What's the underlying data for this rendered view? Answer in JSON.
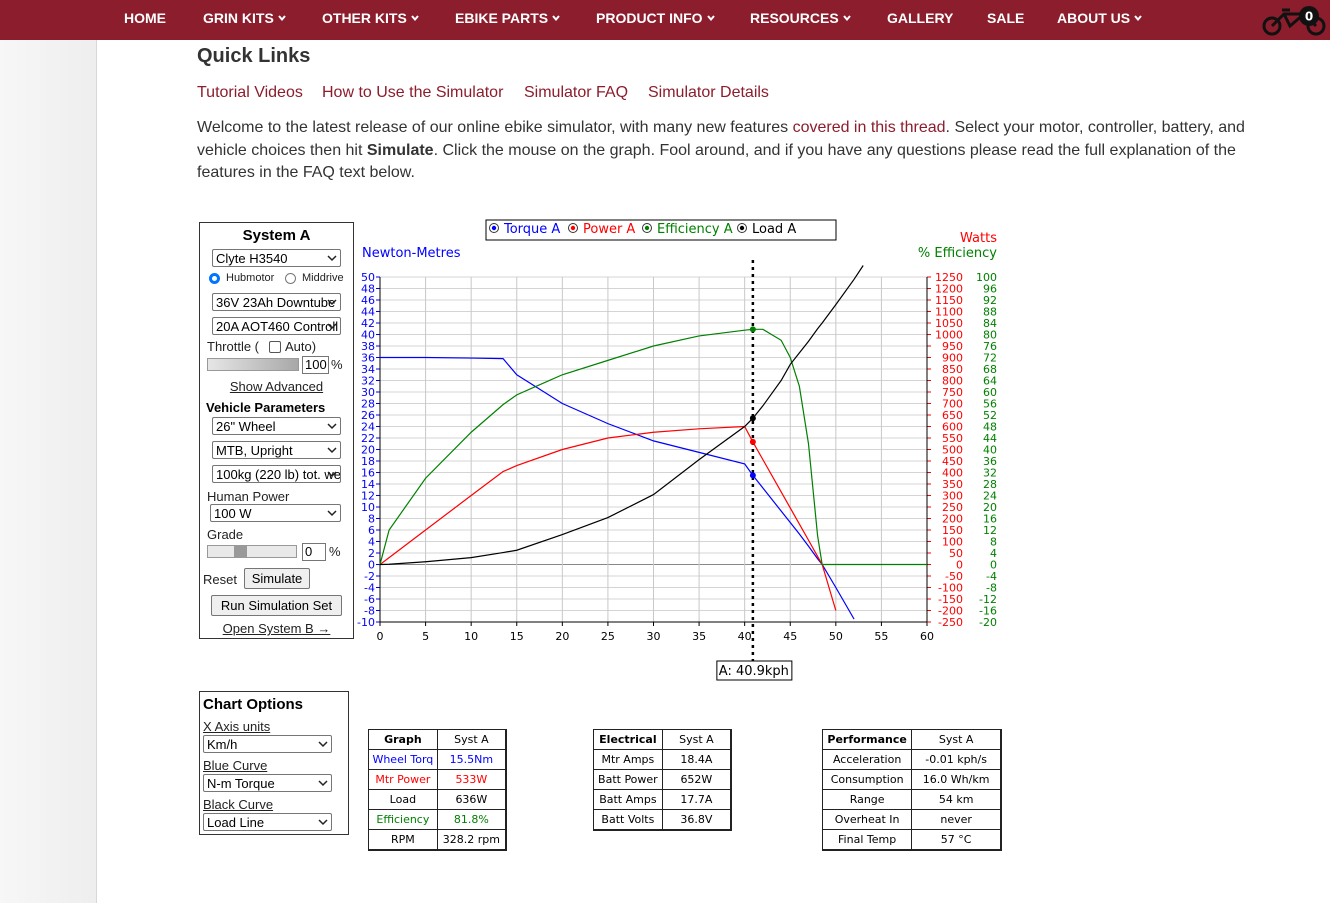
{
  "nav": {
    "items": [
      "HOME",
      "GRIN KITS",
      "OTHER KITS",
      "EBIKE PARTS",
      "PRODUCT INFO",
      "RESOURCES",
      "GALLERY",
      "SALE",
      "ABOUT US"
    ],
    "cart_count": 0
  },
  "header": {
    "title": "Quick Links"
  },
  "quick_links": [
    "Tutorial Videos",
    "How to Use the Simulator",
    "Simulator FAQ",
    "Simulator Details"
  ],
  "intro": {
    "text_1": "Welcome to the latest release of our online ebike simulator, with many new features ",
    "link": "covered in this thread",
    "text_2": ".  Select your motor, controller, battery, and vehicle choices then hit ",
    "bold": "Simulate",
    "text_3": ". Click the mouse on the graph. Fool around, and if you have any questions please read the full explanation of the features in the FAQ text below."
  },
  "system_a": {
    "title": "System A",
    "motor": "Clyte H3540",
    "radio_1": "Hubmotor",
    "radio_2": "Middrive",
    "battery": "36V 23Ah Downtube",
    "controller": "20A AOT460 Controll",
    "throttle_label": "Throttle (",
    "throttle_auto": "Auto)",
    "throttle_value": "100",
    "throttle_unit": "%",
    "show_advanced": "Show Advanced",
    "vehicle_title": "Vehicle Parameters",
    "wheel": "26\"  Wheel",
    "posture": "MTB, Upright",
    "weight": "100kg (220 lb) tot. we",
    "human_power_label": "Human Power",
    "human_power": "100 W",
    "grade_label": "Grade",
    "grade_value": "0",
    "grade_unit": "%",
    "reset": "Reset",
    "simulate": "Simulate",
    "run_set": "Run Simulation Set",
    "open_b": "Open System B →"
  },
  "chart_data": {
    "type": "line",
    "y_title": "Newton-Metres",
    "y2_title": "Watts",
    "y3_title": "% Efficiency",
    "x": [
      0,
      1,
      5,
      10,
      13.5,
      15,
      20,
      25,
      30,
      35,
      40,
      40.9,
      42,
      44,
      45,
      46,
      47,
      48,
      48.5,
      50,
      52,
      53,
      55,
      60
    ],
    "series": [
      {
        "name": "Torque A",
        "color": "#0000ff",
        "axis": "y",
        "values": [
          36,
          36,
          36,
          35.9,
          35.8,
          33,
          28,
          24.5,
          21.5,
          19.5,
          17.5,
          15.5,
          13.3,
          9.3,
          7.3,
          5.3,
          3.2,
          1,
          0,
          -4,
          -9.5,
          null,
          null,
          null
        ]
      },
      {
        "name": "Power A",
        "color": "#ff0000",
        "axis": "y2",
        "values": [
          0,
          30,
          150,
          300,
          404,
          430,
          500,
          550,
          575,
          590,
          600,
          533,
          456,
          316,
          246,
          176,
          106,
          35,
          0,
          -200,
          null,
          null,
          null,
          null
        ]
      },
      {
        "name": "Efficiency A",
        "color": "#008000",
        "axis": "y3",
        "values": [
          0,
          12,
          30,
          46,
          55.6,
          59,
          66,
          71,
          76,
          79.5,
          81.5,
          81.8,
          81.8,
          78,
          72,
          62,
          42,
          10,
          0,
          0,
          0,
          0,
          0,
          0
        ]
      },
      {
        "name": "Load A",
        "color": "#000000",
        "axis": "y2",
        "values": [
          0,
          1,
          12,
          30,
          52,
          62,
          130,
          204,
          304,
          456,
          600,
          636,
          690,
          800,
          870,
          920,
          970,
          1025,
          1050,
          1130,
          1240,
          1300,
          null,
          null
        ]
      }
    ],
    "xlim": [
      0,
      60
    ],
    "xticks": [
      0,
      5,
      10,
      15,
      20,
      25,
      30,
      35,
      40,
      45,
      50,
      55,
      60
    ],
    "ylim": [
      -10,
      50
    ],
    "yticks": [
      -10,
      -8,
      -6,
      -4,
      -2,
      0,
      2,
      4,
      6,
      8,
      10,
      12,
      14,
      16,
      18,
      20,
      22,
      24,
      26,
      28,
      30,
      32,
      34,
      36,
      38,
      40,
      42,
      44,
      46,
      48,
      50
    ],
    "y2lim": [
      -250,
      1250
    ],
    "y2ticks": [
      -250,
      -200,
      -150,
      -100,
      -50,
      0,
      50,
      100,
      150,
      200,
      250,
      300,
      350,
      400,
      450,
      500,
      550,
      600,
      650,
      700,
      750,
      800,
      850,
      900,
      950,
      1000,
      1050,
      1100,
      1150,
      1200,
      1250
    ],
    "y3lim": [
      -20,
      100
    ],
    "y3ticks": [
      -20,
      -16,
      -12,
      -8,
      -4,
      0,
      4,
      8,
      12,
      16,
      20,
      24,
      28,
      32,
      36,
      40,
      44,
      48,
      52,
      56,
      60,
      64,
      68,
      72,
      76,
      80,
      84,
      88,
      92,
      96,
      100
    ],
    "grid": true,
    "cursor": {
      "x": 40.9,
      "label": "A: 40.9kph"
    }
  },
  "chart_options": {
    "title": "Chart Options",
    "x_units_label": "X Axis units",
    "x_units": "Km/h",
    "blue_label": "Blue Curve",
    "blue": "N-m Torque",
    "black_label": "Black Curve",
    "black": "Load Line"
  },
  "tables": {
    "graph": {
      "rows": [
        [
          "Graph",
          "Syst A"
        ],
        [
          "Wheel Torq",
          "15.5Nm"
        ],
        [
          "Mtr Power",
          "533W"
        ],
        [
          "Load",
          "636W"
        ],
        [
          "Efficiency",
          "81.8%"
        ],
        [
          "RPM",
          "328.2 rpm"
        ]
      ]
    },
    "electrical": {
      "rows": [
        [
          "Electrical",
          "Syst A"
        ],
        [
          "Mtr Amps",
          "18.4A"
        ],
        [
          "Batt Power",
          "652W"
        ],
        [
          "Batt Amps",
          "17.7A"
        ],
        [
          "Batt Volts",
          "36.8V"
        ]
      ]
    },
    "performance": {
      "rows": [
        [
          "Performance",
          "Syst A"
        ],
        [
          "Acceleration",
          "-0.01 kph/s"
        ],
        [
          "Consumption",
          "16.0 Wh/km"
        ],
        [
          "Range",
          "54 km"
        ],
        [
          "Overheat In",
          "never"
        ],
        [
          "Final Temp",
          "57 °C"
        ]
      ]
    }
  }
}
